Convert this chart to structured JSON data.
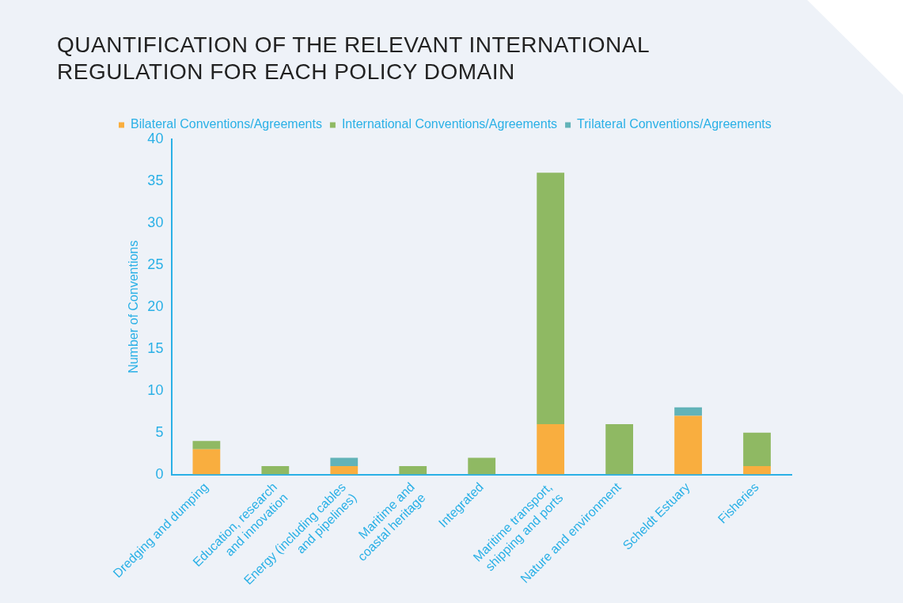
{
  "chart_data": {
    "type": "bar",
    "title": "QUANTIFICATION OF THE RELEVANT INTERNATIONAL REGULATION FOR EACH POLICY DOMAIN",
    "ylabel": "Number of Conventions",
    "categories": [
      "Dredging and dumping",
      "Education, research and innovation",
      "Energy (including cables and pipelines)",
      "Maritime and coastal heritage",
      "Integrated",
      "Maritime transport, shipping and ports",
      "Nature and environment",
      "Scheldt Estuary",
      "Fisheries"
    ],
    "stacked": true,
    "series": [
      {
        "name": "Bilateral Conventions/Agreements",
        "color": "#f9ae3f",
        "values": [
          3,
          0,
          1,
          0,
          0,
          6,
          0,
          7,
          1
        ]
      },
      {
        "name": "International Conventions/Agreements",
        "color": "#8fb963",
        "values": [
          1,
          1,
          0,
          1,
          2,
          30,
          6,
          0,
          4
        ]
      },
      {
        "name": "Trilateral Conventions/Agreements",
        "color": "#62b3b8",
        "values": [
          0,
          0,
          1,
          0,
          0,
          0,
          0,
          1,
          0
        ]
      }
    ],
    "ylim": [
      0,
      40
    ],
    "yticks": [
      0,
      5,
      10,
      15,
      20,
      25,
      30,
      35,
      40
    ],
    "grid": false,
    "legend": "top left"
  }
}
